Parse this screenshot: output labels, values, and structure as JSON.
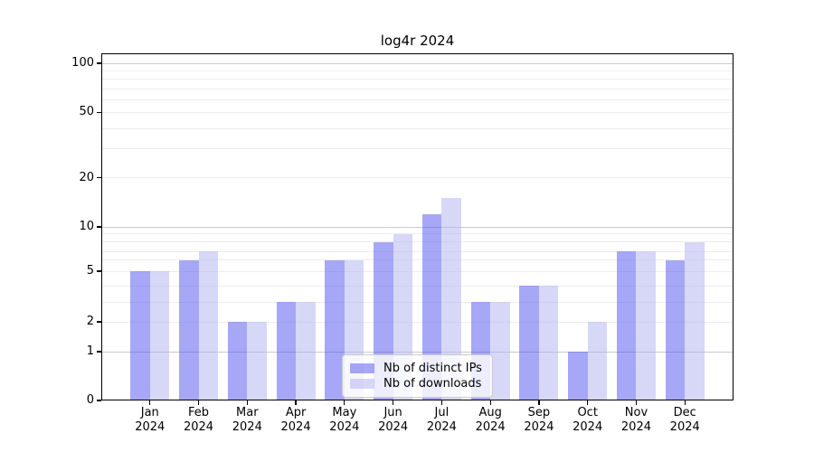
{
  "title": "log4r 2024",
  "chart_data": {
    "type": "bar",
    "title": "log4r 2024",
    "categories": [
      "Jan",
      "Feb",
      "Mar",
      "Apr",
      "May",
      "Jun",
      "Jul",
      "Aug",
      "Sep",
      "Oct",
      "Nov",
      "Dec"
    ],
    "category_year": "2024",
    "series": [
      {
        "name": "Nb of distinct IPs",
        "color": "#5050f0",
        "alpha": 0.5,
        "values": [
          5,
          6,
          2,
          3,
          6,
          8,
          12,
          3,
          4,
          1,
          7,
          6
        ]
      },
      {
        "name": "Nb of downloads",
        "color": "#b0b0f2",
        "alpha": 0.5,
        "values": [
          5,
          7,
          2,
          3,
          6,
          9,
          15,
          3,
          4,
          2,
          7,
          8
        ]
      }
    ],
    "yscale": "log-like",
    "ylim": [
      0,
      100
    ],
    "yticks": [
      0,
      1,
      2,
      5,
      10,
      20,
      50,
      100
    ],
    "major_gridlines": [
      1,
      10,
      100
    ],
    "minor_gridlines": [
      2,
      3,
      4,
      5,
      6,
      7,
      8,
      9,
      20,
      30,
      40,
      50,
      60,
      70,
      80,
      90
    ],
    "grid": true,
    "legend_position": "lower center",
    "colors": {
      "major_grid": "#c9c9c9",
      "minor_grid": "#ececec",
      "spine": "#000000"
    }
  }
}
